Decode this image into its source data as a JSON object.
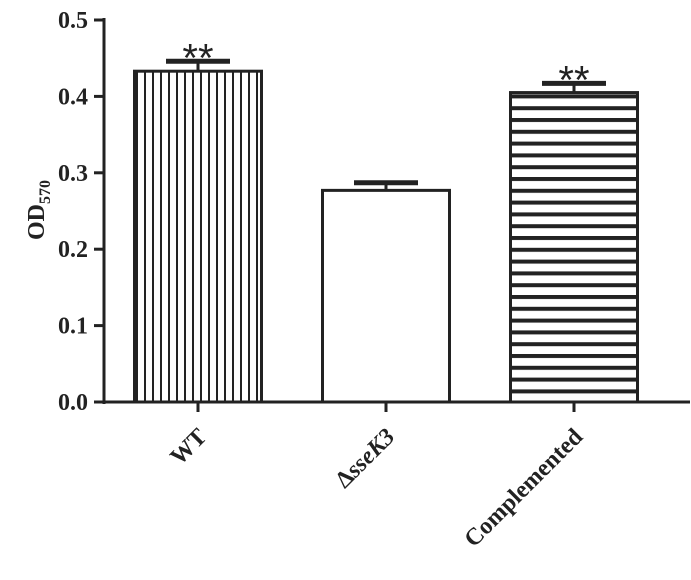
{
  "chart_data": {
    "type": "bar",
    "title": "",
    "xlabel": "",
    "ylabel_main": "OD",
    "ylabel_sub": "570",
    "categories": [
      {
        "pre": "",
        "italic": "",
        "full": "WT"
      },
      {
        "pre": "Δ",
        "italic": "sseK3",
        "full": "ΔsseK3"
      },
      {
        "pre": "",
        "italic": "",
        "full": "Complemented"
      }
    ],
    "values": [
      0.433,
      0.277,
      0.405
    ],
    "errors": [
      0.013,
      0.01,
      0.012
    ],
    "significance": [
      "**",
      "",
      "**"
    ],
    "patterns": [
      "vertical-stripes",
      "none",
      "horizontal-stripes"
    ],
    "ylim": [
      0,
      0.5
    ],
    "yticks": [
      "0.0",
      "0.1",
      "0.2",
      "0.3",
      "0.4",
      "0.5"
    ],
    "grid": false,
    "legend": "none",
    "colors": {
      "ink": "#222222",
      "fill": "#ffffff"
    }
  }
}
